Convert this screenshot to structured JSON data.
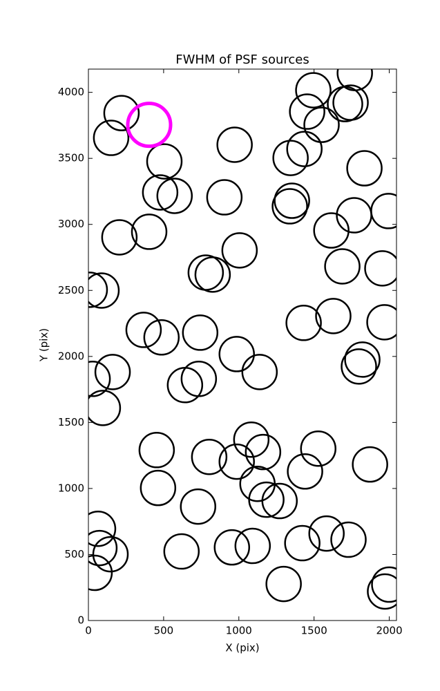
{
  "chart_data": {
    "type": "scatter",
    "title": "FWHM of PSF sources",
    "x_label": "X (pix)",
    "y_label": "Y (pix)",
    "xlim": [
      0,
      2048
    ],
    "ylim": [
      0,
      4176
    ],
    "xticks": [
      0,
      500,
      1000,
      1500,
      2000
    ],
    "yticks": [
      0,
      500,
      1000,
      1500,
      2000,
      2500,
      3000,
      3500,
      4000
    ],
    "grid": false,
    "series": [
      {
        "color": "#000000",
        "x": [
          220,
          151,
          505,
          477,
          573,
          206,
          404,
          972,
          904,
          1005,
          780,
          826,
          9,
          87,
          367,
          486,
          743,
          986,
          1138,
          642,
          734,
          161,
          28,
          96,
          454,
          463,
          803,
          986,
          1083,
          1161,
          1124,
          1183,
          1271,
          729,
          619,
          954,
          1092,
          1298,
          1422,
          1583,
          1729,
          1528,
          1440,
          1872,
          1431,
          1628,
          1968,
          1821,
          1798,
          1688,
          1954,
          1615,
          1766,
          1995,
          1339,
          1353,
          1344,
          1436,
          1454,
          1495,
          1550,
          1706,
          1743,
          1771,
          1835,
          64,
          73,
          147,
          41,
          2000,
          1972
        ],
        "y": [
          3843,
          3655,
          3477,
          3242,
          3216,
          2902,
          2944,
          3603,
          3205,
          2803,
          2635,
          2620,
          2505,
          2499,
          2201,
          2144,
          2180,
          2018,
          1882,
          1783,
          1830,
          1882,
          1830,
          1610,
          1291,
          1004,
          1239,
          1203,
          1370,
          1276,
          1035,
          915,
          905,
          863,
          523,
          554,
          565,
          277,
          586,
          659,
          612,
          1302,
          1129,
          1182,
          2254,
          2306,
          2259,
          1976,
          1924,
          2682,
          2667,
          2954,
          3069,
          3101,
          3137,
          3179,
          3503,
          3571,
          3854,
          4016,
          3754,
          3911,
          3922,
          4146,
          3425,
          695,
          549,
          502,
          361,
          272,
          220
        ]
      },
      {
        "color": "#ff00ff",
        "x": [
          404
        ],
        "y": [
          3754
        ]
      }
    ]
  }
}
